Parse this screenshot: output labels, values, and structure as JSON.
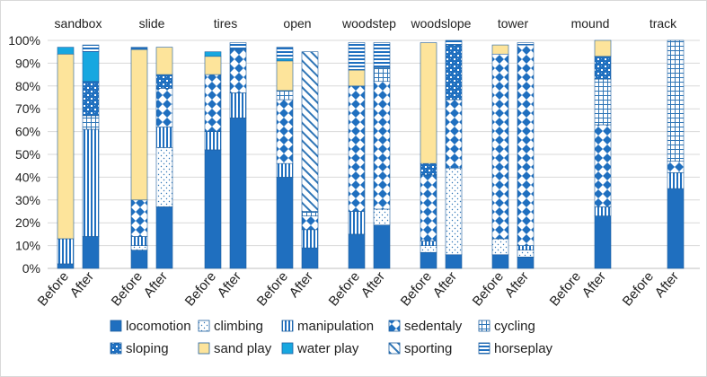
{
  "chart_data": {
    "type": "bar",
    "stacked": true,
    "title": "",
    "xlabel": "",
    "ylabel": "",
    "ylim": [
      0,
      100
    ],
    "y_ticks": [
      "0%",
      "10%",
      "20%",
      "30%",
      "40%",
      "50%",
      "60%",
      "70%",
      "80%",
      "90%",
      "100%"
    ],
    "grid": true,
    "legend_position": "bottom",
    "groups": [
      "sandbox",
      "slide",
      "tires",
      "open",
      "woodstep",
      "woodslope",
      "tower",
      "mound",
      "track"
    ],
    "bar_labels": [
      "Before",
      "After"
    ],
    "series": [
      {
        "name": "locomotion",
        "pattern": "solid"
      },
      {
        "name": "climbing",
        "pattern": "dots"
      },
      {
        "name": "manipulation",
        "pattern": "vlines"
      },
      {
        "name": "sedentaly",
        "pattern": "diamonds"
      },
      {
        "name": "cycling",
        "pattern": "grid"
      },
      {
        "name": "sloping",
        "pattern": "checker"
      },
      {
        "name": "sand play",
        "pattern": "sand"
      },
      {
        "name": "water play",
        "pattern": "water"
      },
      {
        "name": "sporting",
        "pattern": "diag"
      },
      {
        "name": "horseplay",
        "pattern": "hlines"
      }
    ],
    "values": {
      "sandbox": {
        "Before": [
          2,
          0,
          11,
          0,
          0,
          0,
          81,
          3,
          0,
          0
        ],
        "After": [
          14,
          0,
          47,
          0,
          6,
          15,
          0,
          13,
          0,
          3
        ]
      },
      "slide": {
        "Before": [
          8,
          2,
          4,
          16,
          0,
          0,
          66,
          0,
          0,
          1
        ],
        "After": [
          27,
          26,
          9,
          17,
          0,
          6,
          12,
          0,
          0,
          0
        ]
      },
      "tires": {
        "Before": [
          52,
          0,
          8,
          25,
          0,
          0,
          8,
          2,
          0,
          0
        ],
        "After": [
          66,
          0,
          11,
          19,
          0,
          0,
          0,
          0,
          0,
          3
        ]
      },
      "open": {
        "Before": [
          40,
          0,
          6,
          28,
          4,
          0,
          13,
          1,
          0,
          5
        ],
        "After": [
          9,
          0,
          8,
          6,
          2,
          0,
          0,
          0,
          70,
          0
        ]
      },
      "woodstep": {
        "Before": [
          15,
          0,
          10,
          55,
          0,
          0,
          7,
          0,
          0,
          12
        ],
        "After": [
          19,
          7,
          0,
          56,
          6,
          0,
          0,
          0,
          0,
          11
        ]
      },
      "woodslope": {
        "Before": [
          7,
          3,
          2,
          29,
          0,
          5,
          53,
          0,
          0,
          0
        ],
        "After": [
          6,
          38,
          0,
          30,
          0,
          24,
          0,
          0,
          0,
          2
        ]
      },
      "tower": {
        "Before": [
          6,
          7,
          0,
          81,
          0,
          0,
          4,
          0,
          0,
          0
        ],
        "After": [
          5,
          3,
          2,
          88,
          0,
          0,
          0,
          0,
          0,
          1
        ]
      },
      "mound": {
        "Before": [
          0,
          0,
          0,
          0,
          0,
          0,
          0,
          0,
          0,
          0
        ],
        "After": [
          23,
          0,
          4,
          36,
          20,
          10,
          7,
          0,
          0,
          0
        ]
      },
      "track": {
        "Before": [
          0,
          0,
          0,
          0,
          0,
          0,
          0,
          0,
          0,
          0
        ],
        "After": [
          35,
          0,
          7,
          5,
          53,
          0,
          0,
          0,
          0,
          0
        ]
      }
    }
  }
}
